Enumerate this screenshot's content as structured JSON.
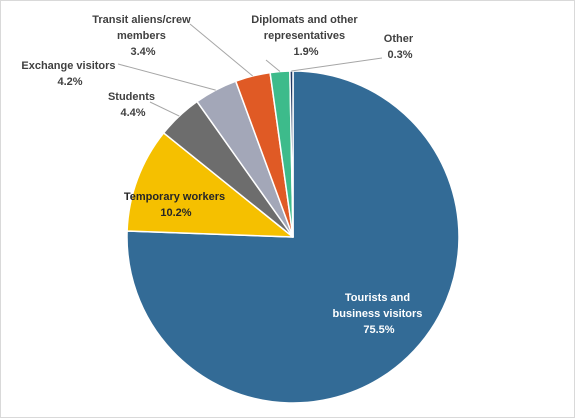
{
  "chart_data": {
    "type": "pie",
    "start_angle_deg": 0,
    "direction": "clockwise",
    "slices": [
      {
        "name": "Tourists and business visitors",
        "value": 75.5,
        "label": "75.5%",
        "color": "#336b96"
      },
      {
        "name": "Temporary workers",
        "value": 10.2,
        "label": "10.2%",
        "color": "#f5c000"
      },
      {
        "name": "Students",
        "value": 4.4,
        "label": "4.4%",
        "color": "#6d6d6d"
      },
      {
        "name": "Exchange visitors",
        "value": 4.2,
        "label": "4.2%",
        "color": "#a3a7b8"
      },
      {
        "name": "Transit aliens/crew members",
        "value": 3.4,
        "label": "3.4%",
        "color": "#e05a25"
      },
      {
        "name": "Diplomats and other representatives",
        "value": 1.9,
        "label": "1.9%",
        "color": "#3dbb8b"
      },
      {
        "name": "Other",
        "value": 0.3,
        "label": "0.3%",
        "color": "#1f3864"
      }
    ],
    "label_lines": {
      "tourists": [
        "Tourists and",
        "business visitors"
      ],
      "temporary": [
        "Temporary workers"
      ],
      "students": [
        "Students"
      ],
      "exchange": [
        "Exchange visitors"
      ],
      "transit": [
        "Transit aliens/crew",
        "members"
      ],
      "diplomats": [
        "Diplomats and other",
        "representatives"
      ],
      "other": [
        "Other"
      ]
    }
  }
}
